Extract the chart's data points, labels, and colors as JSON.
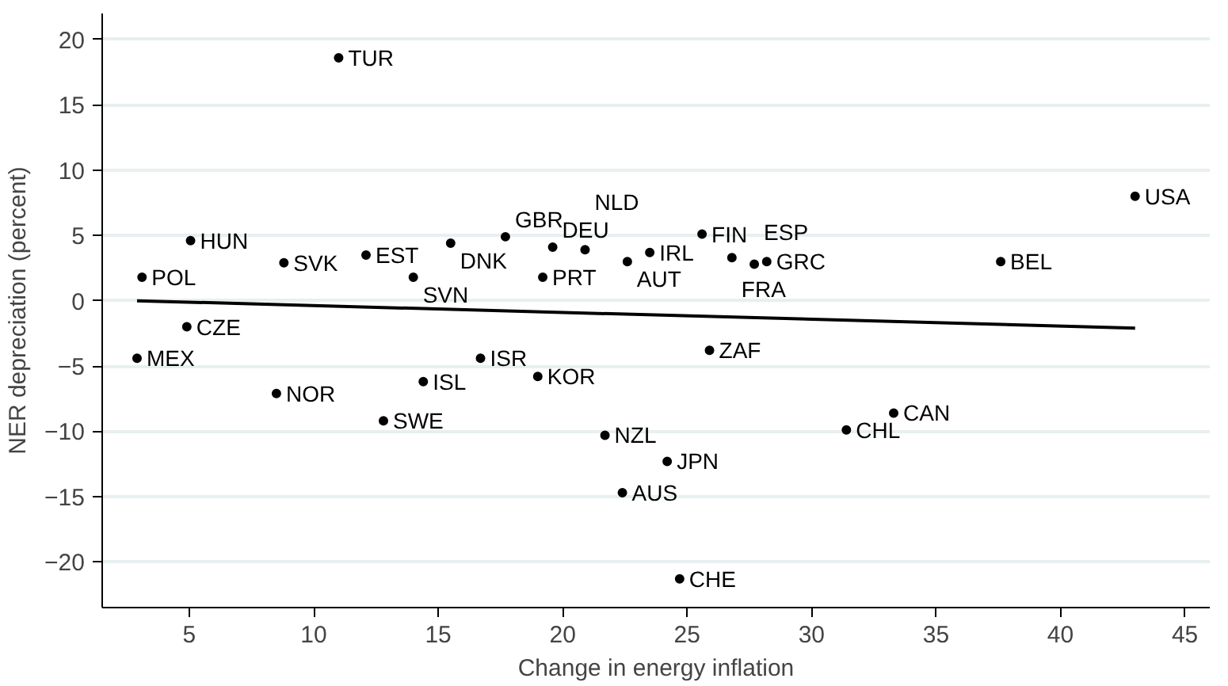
{
  "chart_data": {
    "type": "scatter",
    "xlabel": "Change in energy inflation",
    "ylabel": "NER depreciation (percent)",
    "xlim": [
      1.5,
      46
    ],
    "ylim": [
      -23.5,
      22
    ],
    "xticks": [
      5,
      10,
      15,
      20,
      25,
      30,
      35,
      40,
      45
    ],
    "yticks": [
      -20,
      -15,
      -10,
      -5,
      0,
      5,
      10,
      15,
      20
    ],
    "grid": "y",
    "series": [
      {
        "marker": "circle",
        "color": "#000000",
        "x": [
          11.0,
          5.05,
          3.1,
          8.8,
          12.1,
          15.5,
          14.0,
          4.9,
          2.9,
          8.5,
          16.7,
          14.4,
          12.8,
          19.0,
          17.7,
          19.2,
          19.6,
          20.9,
          22.6,
          23.5,
          25.6,
          26.8,
          27.7,
          28.2,
          25.9,
          21.7,
          24.2,
          22.4,
          24.7,
          31.4,
          33.3,
          37.6,
          43.0
        ],
        "values": [
          18.6,
          4.6,
          1.8,
          2.9,
          3.5,
          4.4,
          1.8,
          -2.0,
          -4.4,
          -7.1,
          -4.4,
          -6.2,
          -9.2,
          -5.8,
          4.9,
          1.8,
          4.1,
          3.9,
          3.0,
          3.7,
          5.1,
          3.3,
          2.8,
          3.0,
          -3.8,
          -10.3,
          -12.3,
          -14.7,
          -21.3,
          -9.9,
          -8.6,
          3.0,
          8.0
        ]
      },
      {
        "type": "line",
        "color": "#000000",
        "x": [
          2.9,
          43.0
        ],
        "values": [
          0.0,
          -2.1
        ]
      }
    ],
    "annotations": [
      {
        "text": "TUR",
        "x": 11.0,
        "y": 18.6
      },
      {
        "text": "HUN",
        "x": 5.05,
        "y": 4.6
      },
      {
        "text": "POL",
        "x": 3.1,
        "y": 1.8
      },
      {
        "text": "SVK",
        "x": 8.8,
        "y": 2.9
      },
      {
        "text": "EST",
        "x": 12.1,
        "y": 3.5
      },
      {
        "text": "DNK",
        "x": 15.5,
        "y": 4.4
      },
      {
        "text": "SVN",
        "x": 14.0,
        "y": 1.8
      },
      {
        "text": "CZE",
        "x": 4.9,
        "y": -2.0
      },
      {
        "text": "MEX",
        "x": 2.9,
        "y": -4.4
      },
      {
        "text": "NOR",
        "x": 8.5,
        "y": -7.1
      },
      {
        "text": "ISR",
        "x": 16.7,
        "y": -4.4
      },
      {
        "text": "ISL",
        "x": 14.4,
        "y": -6.2
      },
      {
        "text": "SWE",
        "x": 12.8,
        "y": -9.2
      },
      {
        "text": "KOR",
        "x": 19.0,
        "y": -5.8
      },
      {
        "text": "GBR",
        "x": 17.7,
        "y": 4.9
      },
      {
        "text": "PRT",
        "x": 19.2,
        "y": 1.8
      },
      {
        "text": "DEU",
        "x": 19.6,
        "y": 4.1
      },
      {
        "text": "NLD",
        "x": 20.9,
        "y": 3.9
      },
      {
        "text": "AUT",
        "x": 22.6,
        "y": 3.0
      },
      {
        "text": "IRL",
        "x": 23.5,
        "y": 3.7
      },
      {
        "text": "FIN",
        "x": 25.6,
        "y": 5.1
      },
      {
        "text": "FRA",
        "x": 26.8,
        "y": 3.3
      },
      {
        "text": "ESP",
        "x": 27.7,
        "y": 2.8
      },
      {
        "text": "GRC",
        "x": 28.2,
        "y": 3.0
      },
      {
        "text": "ZAF",
        "x": 25.9,
        "y": -3.8
      },
      {
        "text": "NZL",
        "x": 21.7,
        "y": -10.3
      },
      {
        "text": "JPN",
        "x": 24.2,
        "y": -12.3
      },
      {
        "text": "AUS",
        "x": 22.4,
        "y": -14.7
      },
      {
        "text": "CHE",
        "x": 24.7,
        "y": -21.3
      },
      {
        "text": "CHL",
        "x": 31.4,
        "y": -9.9
      },
      {
        "text": "CAN",
        "x": 33.3,
        "y": -8.6
      },
      {
        "text": "BEL",
        "x": 37.6,
        "y": 3.0
      },
      {
        "text": "USA",
        "x": 43.0,
        "y": 8.0
      }
    ]
  }
}
